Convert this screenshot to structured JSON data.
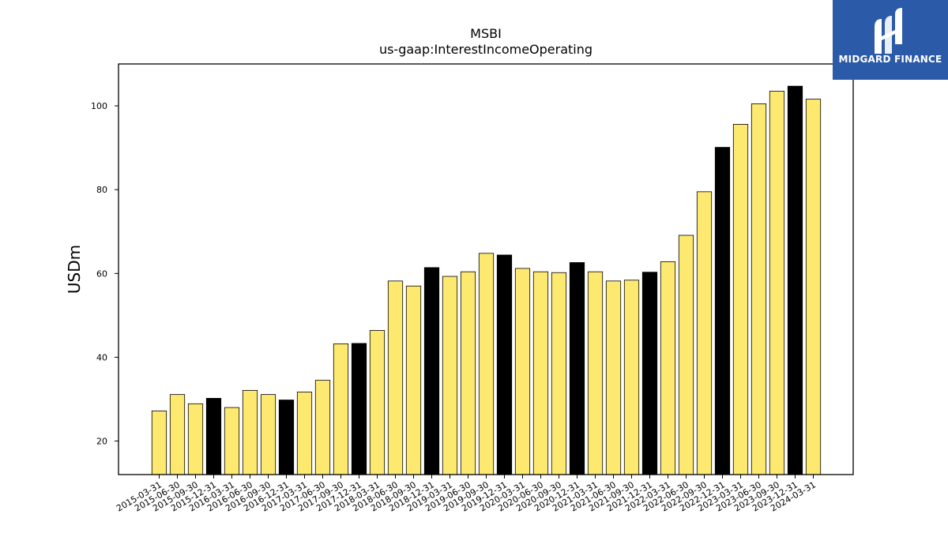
{
  "chart_data": {
    "type": "bar",
    "title": "MSBI",
    "subtitle": "us-gaap:InterestIncomeOperating",
    "xlabel": "",
    "ylabel": "USDm",
    "ylim": [
      12,
      110
    ],
    "yticks": [
      20,
      40,
      60,
      80,
      100
    ],
    "grid": false,
    "colors": {
      "primary": "#fde96f",
      "annual": "#000000",
      "edge": "#000000"
    },
    "categories": [
      "2015-03-31",
      "2015-06-30",
      "2015-09-30",
      "2015-12-31",
      "2016-03-31",
      "2016-06-30",
      "2016-09-30",
      "2016-12-31",
      "2017-03-31",
      "2017-06-30",
      "2017-09-30",
      "2017-12-31",
      "2018-03-31",
      "2018-06-30",
      "2018-09-30",
      "2018-12-31",
      "2019-03-31",
      "2019-06-30",
      "2019-09-30",
      "2019-12-31",
      "2020-03-31",
      "2020-06-30",
      "2020-09-30",
      "2020-12-31",
      "2021-03-31",
      "2021-06-30",
      "2021-09-30",
      "2021-12-31",
      "2022-03-31",
      "2022-06-30",
      "2022-09-30",
      "2022-12-31",
      "2023-03-31",
      "2023-06-30",
      "2023-09-30",
      "2023-12-31",
      "2024-03-31"
    ],
    "values": [
      27.2,
      31.1,
      28.9,
      30.2,
      28.0,
      32.1,
      31.1,
      29.8,
      31.7,
      34.5,
      43.2,
      43.3,
      46.4,
      58.2,
      57.0,
      61.4,
      59.3,
      60.4,
      64.8,
      64.4,
      61.2,
      60.4,
      60.2,
      62.6,
      60.4,
      58.2,
      58.4,
      60.3,
      62.8,
      69.1,
      79.5,
      90.1,
      95.6,
      100.5,
      103.5,
      104.7,
      101.6
    ],
    "highlight": [
      false,
      false,
      false,
      true,
      false,
      false,
      false,
      true,
      false,
      false,
      false,
      true,
      false,
      false,
      false,
      true,
      false,
      false,
      false,
      true,
      false,
      false,
      false,
      true,
      false,
      false,
      false,
      true,
      false,
      false,
      false,
      true,
      false,
      false,
      false,
      true,
      false
    ]
  },
  "logo": {
    "text": "MIDGARD FINANCE",
    "icon": "midgard-logo-icon"
  }
}
